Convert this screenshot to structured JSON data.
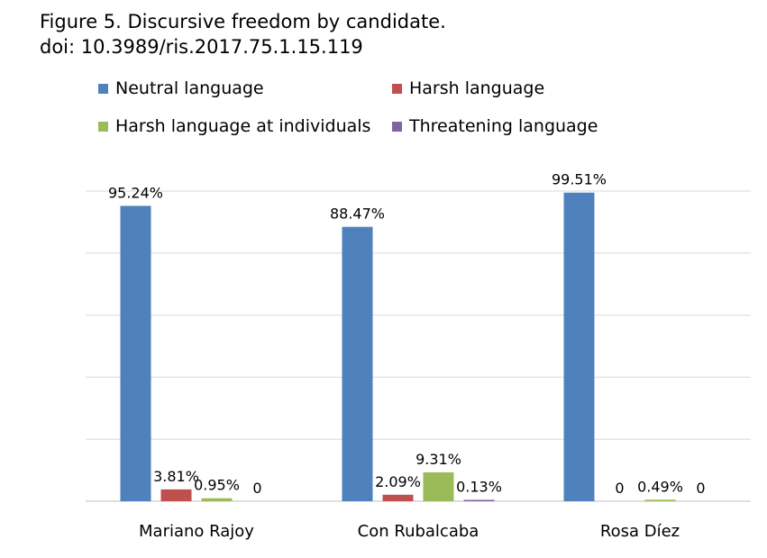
{
  "title": {
    "line1": "Figure 5. Discursive freedom by candidate.",
    "line2": "doi: 10.3989/ris.2017.75.1.15.119"
  },
  "chart_data": {
    "type": "bar",
    "categories": [
      "Mariano Rajoy",
      "Con Rubalcaba",
      "Rosa Díez"
    ],
    "series": [
      {
        "name": "Neutral language",
        "color": "#4F81BD",
        "values": [
          95.24,
          88.47,
          99.51
        ],
        "labels": [
          "95.24%",
          "88.47%",
          "99.51%"
        ]
      },
      {
        "name": "Harsh language",
        "color": "#C0504D",
        "values": [
          3.81,
          2.09,
          0
        ],
        "labels": [
          "3.81%",
          "2.09%",
          "0"
        ]
      },
      {
        "name": "Harsh language at individuals",
        "color": "#9BBB59",
        "values": [
          0.95,
          9.31,
          0.49
        ],
        "labels": [
          "0.95%",
          "9.31%",
          "0.49%"
        ]
      },
      {
        "name": "Threatening language",
        "color": "#8064A2",
        "values": [
          0,
          0.13,
          0
        ],
        "labels": [
          "0",
          "0.13%",
          "0"
        ]
      }
    ],
    "ylim": [
      0,
      100
    ],
    "grid": true,
    "legend_position": "top",
    "xlabel": "",
    "ylabel": ""
  }
}
